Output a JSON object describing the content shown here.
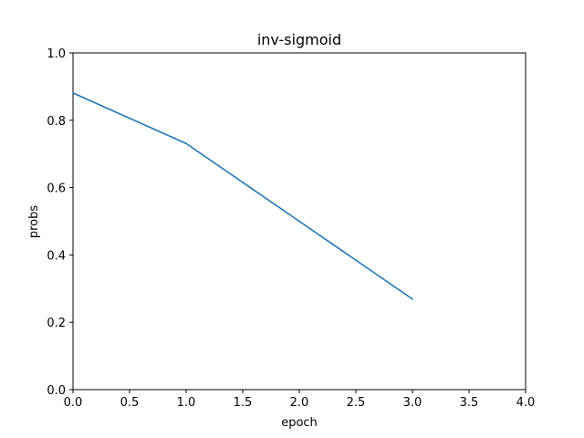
{
  "chart_data": {
    "type": "line",
    "title": "inv-sigmoid",
    "xlabel": "epoch",
    "ylabel": "probs",
    "xlim": [
      0,
      4
    ],
    "ylim": [
      0,
      1
    ],
    "xticks": [
      "0.0",
      "0.5",
      "1.0",
      "1.5",
      "2.0",
      "2.5",
      "3.0",
      "3.5",
      "4.0"
    ],
    "yticks": [
      "0.0",
      "0.2",
      "0.4",
      "0.6",
      "0.8",
      "1.0"
    ],
    "grid": false,
    "series": [
      {
        "x": [
          0,
          1,
          2,
          3
        ],
        "y": [
          0.881,
          0.731,
          0.5,
          0.269
        ],
        "color": "#1f77b4"
      }
    ]
  }
}
